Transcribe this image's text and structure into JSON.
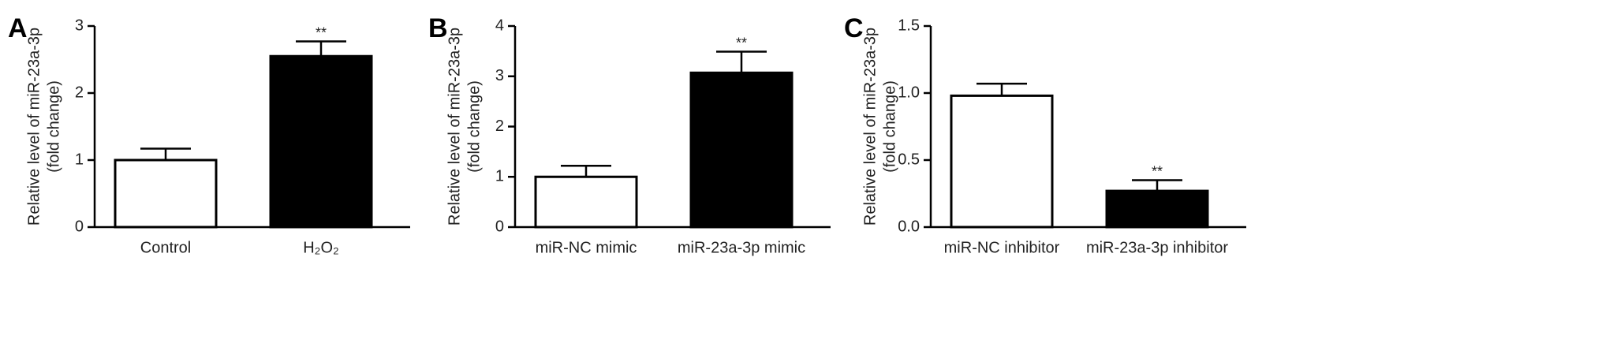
{
  "chart_data": [
    {
      "type": "bar",
      "panel": "A",
      "y_label": [
        "Relative level of miR-23a-3p",
        "(fold change)"
      ],
      "categories": [
        "Control",
        "H₂O₂"
      ],
      "values": [
        1.0,
        2.55
      ],
      "errors": [
        0.17,
        0.22
      ],
      "significance": [
        null,
        "**"
      ],
      "colors": [
        "#ffffff",
        "#000000"
      ],
      "ylim": [
        0,
        3
      ],
      "yticks": [
        0,
        1,
        2,
        3
      ]
    },
    {
      "type": "bar",
      "panel": "B",
      "y_label": [
        "Relative level of miR-23a-3p",
        "(fold change)"
      ],
      "categories": [
        "miR-NC mimic",
        "miR-23a-3p mimic"
      ],
      "values": [
        1.0,
        3.07
      ],
      "errors": [
        0.22,
        0.42
      ],
      "significance": [
        null,
        "**"
      ],
      "colors": [
        "#ffffff",
        "#000000"
      ],
      "ylim": [
        0,
        4
      ],
      "yticks": [
        0,
        1,
        2,
        3,
        4
      ]
    },
    {
      "type": "bar",
      "panel": "C",
      "y_label": [
        "Relative level of miR-23a-3p",
        "(fold change)"
      ],
      "categories": [
        "miR-NC inhibitor",
        "miR-23a-3p inhibitor"
      ],
      "values": [
        0.98,
        0.27
      ],
      "errors": [
        0.09,
        0.08
      ],
      "significance": [
        null,
        "**"
      ],
      "colors": [
        "#ffffff",
        "#000000"
      ],
      "ylim": [
        0,
        1.5
      ],
      "yticks": [
        {
          "value": 0,
          "label": "0.0"
        },
        {
          "value": 0.5,
          "label": "0.5"
        },
        {
          "value": 1.0,
          "label": "1.0"
        },
        1.5
      ]
    }
  ]
}
